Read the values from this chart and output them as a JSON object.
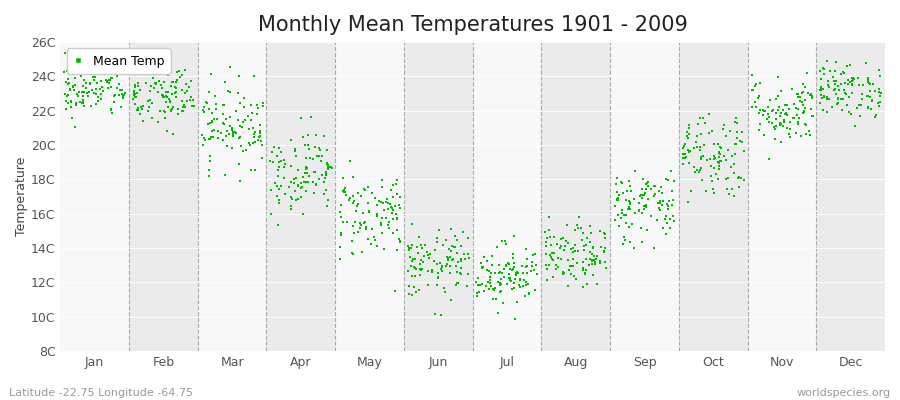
{
  "title": "Monthly Mean Temperatures 1901 - 2009",
  "ylabel": "Temperature",
  "xlabel_labels": [
    "Jan",
    "Feb",
    "Mar",
    "Apr",
    "May",
    "Jun",
    "Jul",
    "Aug",
    "Sep",
    "Oct",
    "Nov",
    "Dec"
  ],
  "ytick_labels": [
    "8C",
    "10C",
    "12C",
    "14C",
    "16C",
    "18C",
    "20C",
    "22C",
    "24C",
    "26C"
  ],
  "ytick_values": [
    8,
    10,
    12,
    14,
    16,
    18,
    20,
    22,
    24,
    26
  ],
  "ylim": [
    8,
    26
  ],
  "dot_color": "#00bb00",
  "dot_size": 3,
  "background_color": "#ffffff",
  "plot_bg_even": "#ebebeb",
  "plot_bg_odd": "#f8f8f8",
  "legend_label": "Mean Temp",
  "footnote_left": "Latitude -22.75 Longitude -64.75",
  "footnote_right": "worldspecies.org",
  "title_fontsize": 15,
  "axis_fontsize": 9,
  "tick_fontsize": 9,
  "monthly_mean": [
    23.2,
    22.8,
    21.2,
    18.5,
    16.0,
    13.0,
    12.5,
    13.5,
    16.5,
    19.5,
    22.0,
    23.2
  ],
  "monthly_std": [
    0.8,
    1.0,
    1.2,
    1.2,
    1.3,
    1.0,
    0.9,
    0.9,
    1.1,
    1.3,
    1.0,
    0.8
  ],
  "n_years": 109,
  "seed": 42
}
